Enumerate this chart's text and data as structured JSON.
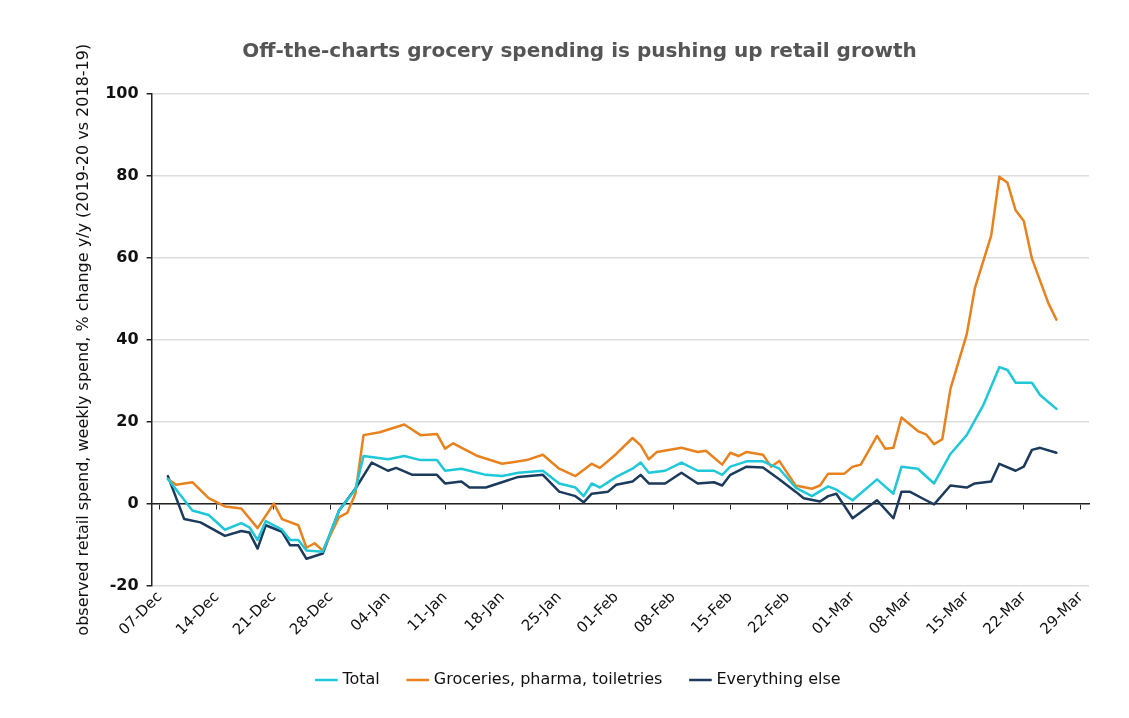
{
  "chart_data": {
    "type": "line",
    "title": "Off-the-charts grocery spending is pushing up retail growth",
    "ylabel": "observed retail spend, weekly spend, % change y/y (2019-20 vs 2018-19)",
    "xlim": [
      "2019-12-06",
      "2020-03-30"
    ],
    "xticks": [
      {
        "value": "2019-12-07",
        "label": "07-Dec"
      },
      {
        "value": "2019-12-14",
        "label": "14-Dec"
      },
      {
        "value": "2019-12-21",
        "label": "21-Dec"
      },
      {
        "value": "2019-12-28",
        "label": "28-Dec"
      },
      {
        "value": "2020-01-04",
        "label": "04-Jan"
      },
      {
        "value": "2020-01-11",
        "label": "11-Jan"
      },
      {
        "value": "2020-01-18",
        "label": "18-Jan"
      },
      {
        "value": "2020-01-25",
        "label": "25-Jan"
      },
      {
        "value": "2020-02-01",
        "label": "01-Feb"
      },
      {
        "value": "2020-02-08",
        "label": "08-Feb"
      },
      {
        "value": "2020-02-15",
        "label": "15-Feb"
      },
      {
        "value": "2020-02-22",
        "label": "22-Feb"
      },
      {
        "value": "2020-03-01",
        "label": "01-Mar"
      },
      {
        "value": "2020-03-08",
        "label": "08-Mar"
      },
      {
        "value": "2020-03-15",
        "label": "15-Mar"
      },
      {
        "value": "2020-03-22",
        "label": "22-Mar"
      },
      {
        "value": "2020-03-29",
        "label": "29-Mar"
      }
    ],
    "ylim": [
      -20,
      100
    ],
    "yticks": [
      -20,
      0,
      20,
      40,
      60,
      80,
      100
    ],
    "grid": "y",
    "legend": "bottom",
    "marker": "none",
    "line_style": "solid",
    "series": [
      {
        "name": "Total",
        "color": "#1ec8d8",
        "x": [
          "2019-12-08",
          "2019-12-11",
          "2019-12-13",
          "2019-12-15",
          "2019-12-17",
          "2019-12-18",
          "2019-12-19",
          "2019-12-20",
          "2019-12-22",
          "2019-12-23",
          "2019-12-24",
          "2019-12-25",
          "2019-12-27",
          "2019-12-29",
          "2019-12-31",
          "2020-01-01",
          "2020-01-04",
          "2020-01-06",
          "2020-01-08",
          "2020-01-10",
          "2020-01-11",
          "2020-01-13",
          "2020-01-16",
          "2020-01-18",
          "2020-01-20",
          "2020-01-23",
          "2020-01-25",
          "2020-01-27",
          "2020-01-28",
          "2020-01-29",
          "2020-01-30",
          "2020-02-01",
          "2020-02-03",
          "2020-02-04",
          "2020-02-05",
          "2020-02-07",
          "2020-02-09",
          "2020-02-11",
          "2020-02-13",
          "2020-02-14",
          "2020-02-15",
          "2020-02-17",
          "2020-02-19",
          "2020-02-21",
          "2020-02-23",
          "2020-02-25",
          "2020-02-27",
          "2020-02-28",
          "2020-03-01",
          "2020-03-04",
          "2020-03-06",
          "2020-03-07",
          "2020-03-09",
          "2020-03-11",
          "2020-03-13",
          "2020-03-15",
          "2020-03-17",
          "2020-03-19",
          "2020-03-20",
          "2020-03-21",
          "2020-03-23",
          "2020-03-24",
          "2020-03-26"
        ],
        "values": [
          6,
          -1.7,
          -2.8,
          -6.4,
          -4.8,
          -5.8,
          -8.9,
          -4.3,
          -6.4,
          -8.9,
          -8.9,
          -11.5,
          -11.8,
          -1.7,
          3.4,
          11.6,
          10.8,
          11.6,
          10.6,
          10.6,
          8,
          8.5,
          7,
          6.7,
          7.5,
          8,
          4.9,
          3.9,
          1.8,
          4.9,
          3.9,
          6.5,
          8.5,
          10,
          7.5,
          8,
          10,
          8,
          8,
          7,
          9,
          10.3,
          10.3,
          8.5,
          3.9,
          1.8,
          4.2,
          3.4,
          0.8,
          5.9,
          2.4,
          9,
          8.5,
          4.9,
          12.1,
          16.7,
          23.9,
          33.3,
          32.6,
          29.5,
          29.5,
          26.5,
          23.1
        ]
      },
      {
        "name": "Groceries, pharma, toiletries",
        "color": "#e8821e",
        "x": [
          "2019-12-08",
          "2019-12-09",
          "2019-12-11",
          "2019-12-13",
          "2019-12-15",
          "2019-12-17",
          "2019-12-19",
          "2019-12-21",
          "2019-12-22",
          "2019-12-24",
          "2019-12-25",
          "2019-12-26",
          "2019-12-27",
          "2019-12-29",
          "2019-12-30",
          "2019-12-31",
          "2020-01-01",
          "2020-01-03",
          "2020-01-06",
          "2020-01-08",
          "2020-01-10",
          "2020-01-11",
          "2020-01-12",
          "2020-01-15",
          "2020-01-18",
          "2020-01-21",
          "2020-01-23",
          "2020-01-25",
          "2020-01-27",
          "2020-01-29",
          "2020-01-30",
          "2020-02-01",
          "2020-02-03",
          "2020-02-04",
          "2020-02-05",
          "2020-02-06",
          "2020-02-09",
          "2020-02-11",
          "2020-02-12",
          "2020-02-14",
          "2020-02-15",
          "2020-02-16",
          "2020-02-17",
          "2020-02-19",
          "2020-02-20",
          "2020-02-21",
          "2020-02-23",
          "2020-02-25",
          "2020-02-26",
          "2020-02-27",
          "2020-02-29",
          "2020-03-01",
          "2020-03-02",
          "2020-03-04",
          "2020-03-05",
          "2020-03-06",
          "2020-03-07",
          "2020-03-09",
          "2020-03-10",
          "2020-03-11",
          "2020-03-12",
          "2020-03-13",
          "2020-03-15",
          "2020-03-16",
          "2020-03-18",
          "2020-03-19",
          "2020-03-20",
          "2020-03-21",
          "2020-03-22",
          "2020-03-23",
          "2020-03-25",
          "2020-03-26"
        ],
        "values": [
          6,
          4.6,
          5.2,
          1.3,
          -0.7,
          -1.2,
          -6,
          0,
          -3.8,
          -5.3,
          -10.8,
          -9.7,
          -11.5,
          -3.3,
          -2.3,
          2.4,
          16.7,
          17.4,
          19.3,
          16.7,
          17,
          13.4,
          14.7,
          11.6,
          9.7,
          10.6,
          11.9,
          8.5,
          6.7,
          9.7,
          8.7,
          12.1,
          16,
          14.2,
          10.8,
          12.6,
          13.6,
          12.6,
          12.9,
          9.5,
          12.4,
          11.6,
          12.6,
          11.9,
          9,
          10.4,
          4.4,
          3.6,
          4.4,
          7.3,
          7.3,
          9,
          9.5,
          16.5,
          13.4,
          13.6,
          21,
          17.7,
          16.9,
          14.5,
          15.7,
          28,
          41.3,
          52.6,
          65.4,
          79.8,
          78.3,
          71.6,
          69,
          59.8,
          49,
          44.9
        ]
      },
      {
        "name": "Everything else",
        "color": "#1b3a5c",
        "x": [
          "2019-12-08",
          "2019-12-10",
          "2019-12-12",
          "2019-12-15",
          "2019-12-17",
          "2019-12-18",
          "2019-12-19",
          "2019-12-20",
          "2019-12-22",
          "2019-12-23",
          "2019-12-24",
          "2019-12-25",
          "2019-12-27",
          "2019-12-29",
          "2019-12-31",
          "2020-01-02",
          "2020-01-04",
          "2020-01-05",
          "2020-01-07",
          "2020-01-10",
          "2020-01-11",
          "2020-01-13",
          "2020-01-14",
          "2020-01-16",
          "2020-01-20",
          "2020-01-23",
          "2020-01-25",
          "2020-01-27",
          "2020-01-28",
          "2020-01-29",
          "2020-01-31",
          "2020-02-01",
          "2020-02-03",
          "2020-02-04",
          "2020-02-05",
          "2020-02-07",
          "2020-02-09",
          "2020-02-11",
          "2020-02-13",
          "2020-02-14",
          "2020-02-15",
          "2020-02-17",
          "2020-02-19",
          "2020-02-21",
          "2020-02-23",
          "2020-02-24",
          "2020-02-26",
          "2020-02-27",
          "2020-02-28",
          "2020-03-01",
          "2020-03-04",
          "2020-03-06",
          "2020-03-07",
          "2020-03-08",
          "2020-03-10",
          "2020-03-11",
          "2020-03-13",
          "2020-03-15",
          "2020-03-16",
          "2020-03-18",
          "2020-03-19",
          "2020-03-21",
          "2020-03-22",
          "2020-03-23",
          "2020-03-24",
          "2020-03-26"
        ],
        "values": [
          6.7,
          -3.8,
          -4.6,
          -7.9,
          -6.7,
          -7.1,
          -11,
          -5.3,
          -6.9,
          -10.2,
          -10.2,
          -13.5,
          -12.2,
          -1.7,
          3.6,
          10,
          8,
          8.7,
          7,
          7,
          4.9,
          5.4,
          3.9,
          3.9,
          6.5,
          7,
          2.9,
          1.8,
          0.3,
          2.4,
          2.9,
          4.6,
          5.4,
          7,
          4.9,
          4.9,
          7.5,
          4.9,
          5.2,
          4.4,
          7,
          9,
          8.8,
          5.9,
          2.9,
          1.3,
          0.5,
          1.8,
          2.4,
          -3.6,
          0.8,
          -3.6,
          2.9,
          2.9,
          0.8,
          -0.2,
          4.4,
          3.9,
          4.9,
          5.4,
          9.7,
          8,
          9,
          13.1,
          13.6,
          12.4
        ]
      }
    ]
  }
}
